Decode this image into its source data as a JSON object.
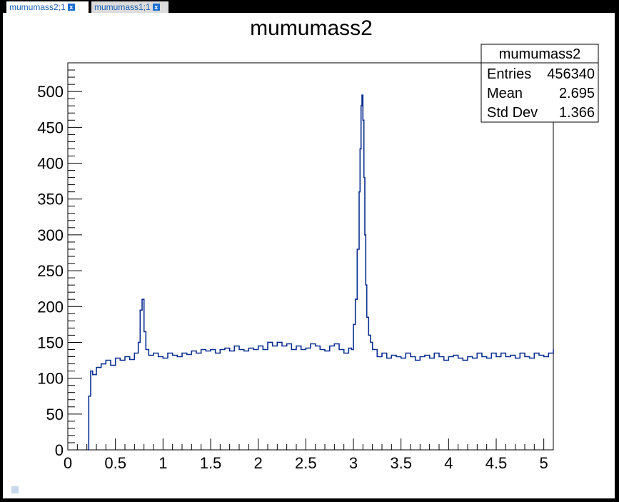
{
  "tabs": [
    {
      "label": "mumumass2;1",
      "close": "x"
    },
    {
      "label": "mumumass1;1",
      "close": "x"
    }
  ],
  "colors": {
    "line": "#0b2f8f",
    "frame": "#000000",
    "tab_text": "#1a5fb4",
    "close_bg": "#1c6fd1"
  },
  "chart_data": {
    "type": "line",
    "title": "mumumass2",
    "xlabel": "",
    "ylabel": "",
    "xlim": [
      0,
      5.1
    ],
    "ylim": [
      0,
      540
    ],
    "x_ticks": [
      "0",
      "0.5",
      "1",
      "1.5",
      "2",
      "2.5",
      "3",
      "3.5",
      "4",
      "4.5",
      "5"
    ],
    "x_tick_values": [
      0,
      0.5,
      1,
      1.5,
      2,
      2.5,
      3,
      3.5,
      4,
      4.5,
      5
    ],
    "y_ticks": [
      "0",
      "50",
      "100",
      "150",
      "200",
      "250",
      "300",
      "350",
      "400",
      "450",
      "500"
    ],
    "y_tick_values": [
      0,
      50,
      100,
      150,
      200,
      250,
      300,
      350,
      400,
      450,
      500
    ],
    "stats": {
      "name": "mumumass2",
      "rows": [
        {
          "label": "Entries",
          "value": "456340"
        },
        {
          "label": "Mean",
          "value": "2.695"
        },
        {
          "label": "Std Dev",
          "value": "1.366"
        }
      ]
    },
    "series": [
      {
        "x": [
          0.21,
          0.22,
          0.24,
          0.26,
          0.3,
          0.35,
          0.4,
          0.45,
          0.5,
          0.55,
          0.6,
          0.65,
          0.7,
          0.74,
          0.76,
          0.78,
          0.8,
          0.82,
          0.85,
          0.9,
          0.95,
          1.0,
          1.05,
          1.1,
          1.15,
          1.2,
          1.25,
          1.3,
          1.35,
          1.4,
          1.45,
          1.5,
          1.55,
          1.6,
          1.65,
          1.7,
          1.75,
          1.8,
          1.85,
          1.9,
          1.95,
          2.0,
          2.05,
          2.1,
          2.15,
          2.2,
          2.25,
          2.3,
          2.35,
          2.4,
          2.45,
          2.5,
          2.55,
          2.6,
          2.65,
          2.7,
          2.75,
          2.8,
          2.85,
          2.9,
          2.95,
          2.98,
          3.0,
          3.02,
          3.04,
          3.06,
          3.07,
          3.08,
          3.09,
          3.1,
          3.11,
          3.12,
          3.13,
          3.14,
          3.16,
          3.18,
          3.2,
          3.25,
          3.3,
          3.35,
          3.4,
          3.45,
          3.5,
          3.55,
          3.6,
          3.65,
          3.7,
          3.75,
          3.8,
          3.85,
          3.9,
          3.95,
          4.0,
          4.05,
          4.1,
          4.15,
          4.2,
          4.25,
          4.3,
          4.35,
          4.4,
          4.45,
          4.5,
          4.55,
          4.6,
          4.65,
          4.7,
          4.75,
          4.8,
          4.85,
          4.9,
          4.95,
          5.0,
          5.05,
          5.1
        ],
        "y": [
          0,
          75,
          110,
          105,
          115,
          120,
          125,
          118,
          128,
          125,
          130,
          126,
          135,
          150,
          195,
          210,
          165,
          140,
          132,
          135,
          130,
          128,
          135,
          132,
          130,
          135,
          133,
          138,
          135,
          140,
          138,
          140,
          135,
          140,
          142,
          138,
          145,
          140,
          138,
          142,
          140,
          145,
          140,
          150,
          145,
          150,
          145,
          148,
          140,
          145,
          140,
          142,
          148,
          145,
          140,
          138,
          145,
          148,
          140,
          135,
          142,
          140,
          175,
          210,
          280,
          360,
          420,
          480,
          495,
          460,
          380,
          300,
          230,
          185,
          160,
          150,
          140,
          130,
          135,
          128,
          132,
          130,
          128,
          135,
          130,
          125,
          130,
          132,
          128,
          135,
          130,
          125,
          130,
          132,
          128,
          125,
          130,
          128,
          135,
          130,
          128,
          135,
          130,
          135,
          130,
          132,
          128,
          135,
          130,
          128,
          135,
          132,
          130,
          135,
          140
        ]
      }
    ]
  }
}
